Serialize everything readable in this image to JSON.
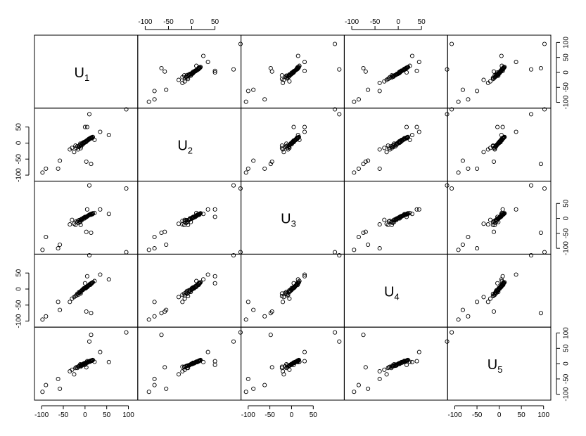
{
  "chart_data": {
    "type": "scatter",
    "variables": [
      "U",
      "U",
      "U",
      "U",
      "U"
    ],
    "subscripts": [
      "1",
      "2",
      "3",
      "4",
      "5"
    ],
    "axis_ranges": [
      [
        -110,
        115
      ],
      [
        -110,
        100
      ],
      [
        -110,
        115
      ],
      [
        -110,
        100
      ],
      [
        -110,
        110
      ]
    ],
    "ticks": [
      {
        "values": [
          -100,
          -50,
          0,
          50,
          100
        ],
        "labels": [
          "-100",
          "-50",
          "0",
          "50",
          "100"
        ]
      },
      {
        "values": [
          -100,
          -50,
          0,
          50
        ],
        "labels": [
          "-100",
          "-50",
          "0",
          "50"
        ]
      },
      {
        "values": [
          -100,
          -50,
          0,
          50
        ],
        "labels": [
          "-100",
          "-50",
          "0",
          "50"
        ]
      },
      {
        "values": [
          -100,
          -50,
          0,
          50
        ],
        "labels": [
          "-100",
          "-50",
          "0",
          "50"
        ]
      },
      {
        "values": [
          -100,
          -50,
          0,
          50,
          100
        ],
        "labels": [
          "-100",
          "-50",
          "0",
          "50",
          "100"
        ]
      }
    ],
    "observations": [
      [
        -98,
        -92,
        -105,
        -95,
        -92
      ],
      [
        -90,
        -80,
        -62,
        -85,
        -70
      ],
      [
        -58,
        -55,
        -88,
        -65,
        -82
      ],
      [
        -35,
        -20,
        -20,
        -40,
        -25
      ],
      [
        -30,
        -15,
        -5,
        -30,
        -20
      ],
      [
        -25,
        -28,
        -18,
        -25,
        -35
      ],
      [
        -20,
        -15,
        -10,
        -20,
        -12
      ],
      [
        -18,
        -10,
        -12,
        -15,
        -14
      ],
      [
        -16,
        -20,
        -8,
        -18,
        -10
      ],
      [
        -14,
        -12,
        -6,
        -10,
        -8
      ],
      [
        -12,
        -8,
        -10,
        -12,
        -6
      ],
      [
        -10,
        -5,
        -4,
        -8,
        -5
      ],
      [
        -9,
        -10,
        -6,
        -6,
        -7
      ],
      [
        -8,
        -3,
        -2,
        -5,
        -3
      ],
      [
        -7,
        -6,
        -5,
        -4,
        -6
      ],
      [
        -6,
        0,
        -1,
        -2,
        -2
      ],
      [
        -5,
        -4,
        0,
        -3,
        -4
      ],
      [
        -4,
        2,
        1,
        0,
        -1
      ],
      [
        -3,
        0,
        2,
        2,
        0
      ],
      [
        -2,
        3,
        3,
        1,
        1
      ],
      [
        -1,
        1,
        0,
        3,
        -1
      ],
      [
        0,
        4,
        4,
        4,
        2
      ],
      [
        1,
        5,
        3,
        2,
        1
      ],
      [
        2,
        3,
        5,
        5,
        3
      ],
      [
        3,
        6,
        6,
        4,
        2
      ],
      [
        4,
        8,
        5,
        6,
        4
      ],
      [
        5,
        7,
        7,
        8,
        3
      ],
      [
        6,
        10,
        8,
        7,
        5
      ],
      [
        7,
        9,
        9,
        10,
        6
      ],
      [
        8,
        12,
        10,
        11,
        5
      ],
      [
        9,
        11,
        11,
        12,
        7
      ],
      [
        10,
        14,
        12,
        14,
        8
      ],
      [
        11,
        13,
        13,
        15,
        6
      ],
      [
        12,
        15,
        14,
        13,
        9
      ],
      [
        13,
        16,
        12,
        16,
        8
      ],
      [
        14,
        17,
        15,
        18,
        10
      ],
      [
        15,
        15,
        13,
        17,
        9
      ],
      [
        16,
        18,
        16,
        19,
        11
      ],
      [
        17,
        16,
        14,
        20,
        10
      ],
      [
        18,
        19,
        17,
        21,
        12
      ],
      [
        -22,
        -8,
        -22,
        -22,
        -14
      ],
      [
        -15,
        -12,
        -15,
        -12,
        -9
      ],
      [
        -11,
        -2,
        -12,
        -9,
        -2
      ],
      [
        -10,
        -16,
        -22,
        -14,
        -10
      ],
      [
        0,
        50,
        5,
        18,
        -4
      ],
      [
        5,
        50,
        30,
        40,
        8
      ],
      [
        22,
        10,
        18,
        25,
        6
      ],
      [
        35,
        35,
        30,
        45,
        38
      ],
      [
        55,
        25,
        15,
        30,
        5
      ],
      [
        -62,
        -80,
        -100,
        -40,
        -50
      ],
      [
        95,
        105,
        100,
        115,
        102
      ],
      [
        3,
        -58,
        -45,
        -70,
        -12
      ],
      [
        10,
        90,
        110,
        105,
        72
      ],
      [
        14,
        -65,
        -48,
        -75,
        94
      ]
    ]
  }
}
